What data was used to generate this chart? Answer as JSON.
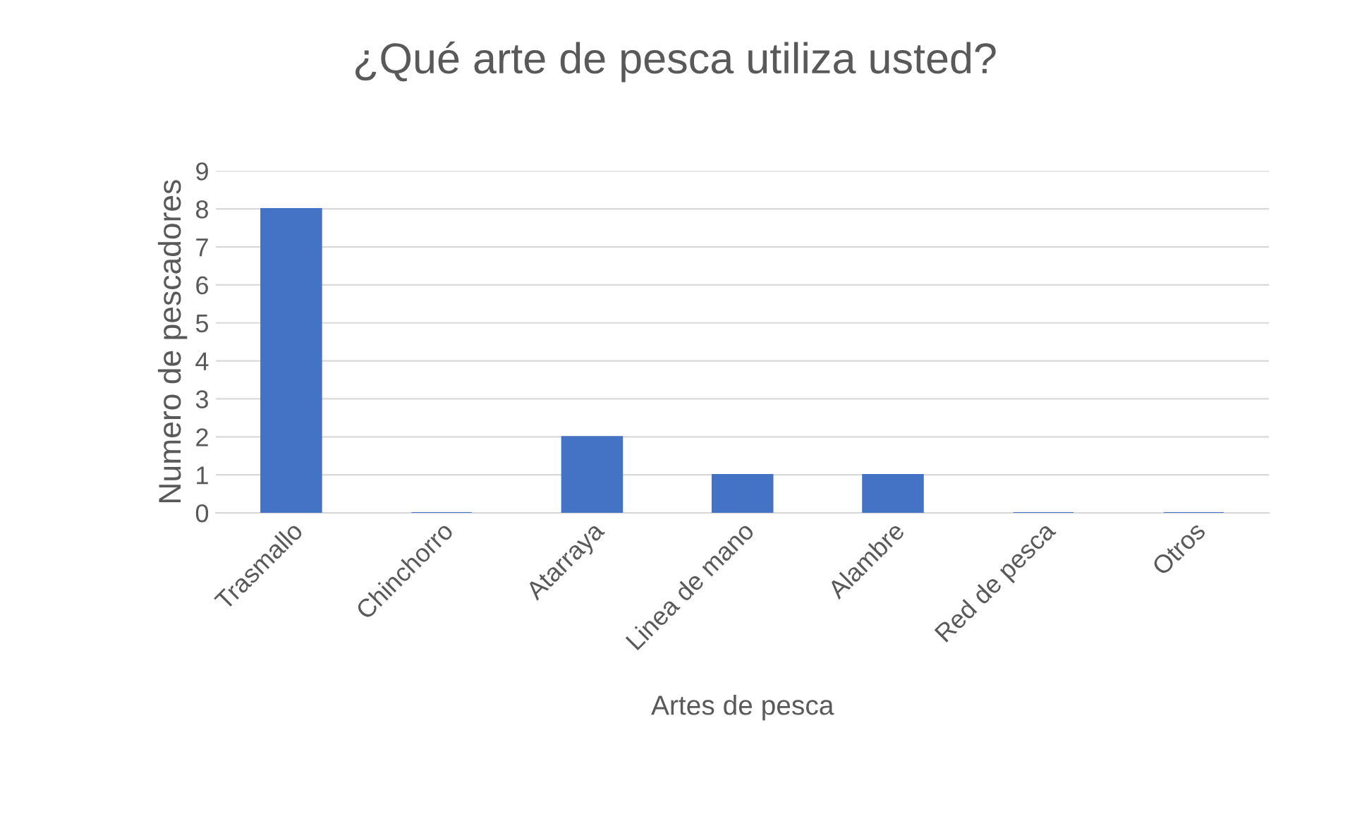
{
  "chart_data": {
    "type": "bar",
    "title": "¿Qué arte de pesca utiliza usted?",
    "xlabel": "Artes de pesca",
    "ylabel": "Numero de pescadores",
    "categories": [
      "Trasmallo",
      "Chinchorro",
      "Atarraya",
      "Linea de mano",
      "Alambre",
      "Red de pesca",
      "Otros"
    ],
    "values": [
      8,
      0,
      2,
      1,
      1,
      0,
      0
    ],
    "color": "#4472c4",
    "ylim": [
      0,
      9
    ],
    "yticks": [
      0,
      1,
      2,
      3,
      4,
      5,
      6,
      7,
      8,
      9
    ],
    "grid": "y"
  }
}
